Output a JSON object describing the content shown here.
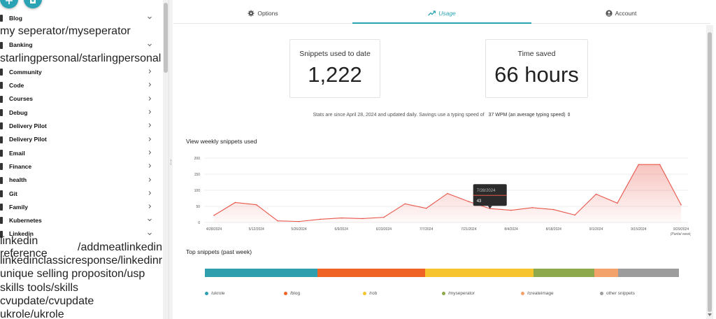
{
  "sidebar": {
    "items": [
      {
        "type": "folder",
        "label": "Blog",
        "expanded": true
      },
      {
        "type": "snippet",
        "label": "my seperator",
        "tag": "/myseperator"
      },
      {
        "type": "folder",
        "label": "Banking",
        "expanded": true
      },
      {
        "type": "snippet",
        "label": "starlingpersonal",
        "tag": "/starlingpersonal"
      },
      {
        "type": "folder",
        "label": "Community",
        "expanded": false
      },
      {
        "type": "folder",
        "label": "Code",
        "expanded": false
      },
      {
        "type": "folder",
        "label": "Courses",
        "expanded": false
      },
      {
        "type": "folder",
        "label": "Debug",
        "expanded": false
      },
      {
        "type": "folder",
        "label": "Delivery Pilot",
        "expanded": false
      },
      {
        "type": "folder",
        "label": "Delivery Pilot",
        "expanded": false
      },
      {
        "type": "folder",
        "label": "Email",
        "expanded": false
      },
      {
        "type": "folder",
        "label": "Finance",
        "expanded": false
      },
      {
        "type": "folder",
        "label": "health",
        "expanded": false
      },
      {
        "type": "folder",
        "label": "Git",
        "expanded": false
      },
      {
        "type": "folder",
        "label": "Family",
        "expanded": false
      },
      {
        "type": "folder",
        "label": "Kubernetes",
        "expanded": true
      },
      {
        "type": "folder",
        "label": "Linkedin",
        "expanded": true
      },
      {
        "type": "snippet",
        "label": "linkedin reference",
        "tag": "/addmeatlinkedin"
      },
      {
        "type": "snippet",
        "label": "linkedinclassicresponse",
        "tag": "/linkedinresponse"
      },
      {
        "type": "snippet",
        "label": "unique selling propositon",
        "tag": "/usp"
      },
      {
        "type": "snippet",
        "label": "skills tools",
        "tag": "/skills"
      },
      {
        "type": "snippet",
        "label": "cvupdate",
        "tag": "/cvupdate"
      },
      {
        "type": "snippet",
        "label": "ukrole",
        "tag": "/ukrole"
      }
    ]
  },
  "tabs": [
    {
      "label": "Options",
      "icon": "gear-icon",
      "active": false
    },
    {
      "label": "Usage",
      "icon": "trending-up-icon",
      "active": true
    },
    {
      "label": "Account",
      "icon": "account-circle-icon",
      "active": false
    }
  ],
  "cards": {
    "snippets_title": "Snippets used to date",
    "snippets_value": "1,222",
    "time_title": "Time saved",
    "time_value": "66 hours"
  },
  "stats": {
    "text": "Stats are since April 28, 2024 and updated daily. Savings use a typing speed of",
    "wpm": "37 WPM (an average typing speed)"
  },
  "weekly_title": "View weekly snippets used",
  "top_title": "Top snippets (past week)",
  "chart_data": [
    {
      "type": "area",
      "title": "View weekly snippets used",
      "x": [
        "4/28/2024",
        "5/5/2024",
        "5/12/2024",
        "5/19/2024",
        "5/26/2024",
        "6/2/2024",
        "6/9/2024",
        "6/16/2024",
        "6/23/2024",
        "6/30/2024",
        "7/7/2024",
        "7/14/2024",
        "7/21/2024",
        "7/28/2024",
        "8/4/2024",
        "8/11/2024",
        "8/18/2024",
        "8/25/2024",
        "9/1/2024",
        "9/8/2024",
        "9/15/2024",
        "9/22/2024",
        "9/29/2024"
      ],
      "y": [
        22,
        62,
        55,
        5,
        3,
        10,
        14,
        12,
        16,
        58,
        44,
        90,
        65,
        43,
        38,
        46,
        40,
        23,
        88,
        60,
        180,
        180,
        55
      ],
      "x_tick_labels": [
        "4/28/2024",
        "5/12/2024",
        "5/26/2024",
        "6/9/2024",
        "6/23/2024",
        "7/7/2024",
        "7/21/2024",
        "8/4/2024",
        "8/18/2024",
        "9/1/2024",
        "9/15/2024",
        "9/29/2024"
      ],
      "x_tick_note": "(Partial week)",
      "y_ticks": [
        0,
        50,
        100,
        150,
        200
      ],
      "ylim": [
        0,
        200
      ],
      "grid": true,
      "color": "#e8564a",
      "tooltip": {
        "date": "7/28/2024",
        "value": "43"
      }
    },
    {
      "type": "bar",
      "title": "Top snippets (past week)",
      "stacked": true,
      "series": [
        {
          "name": "/ukrole",
          "value": 24,
          "color": "#2f9fae"
        },
        {
          "name": "/blog",
          "value": 23,
          "color": "#ef6424"
        },
        {
          "name": "/rob",
          "value": 23,
          "color": "#f6c52e"
        },
        {
          "name": "/myseperator",
          "value": 13,
          "color": "#8ea84c"
        },
        {
          "name": "/createimage",
          "value": 5,
          "color": "#f4a26c"
        },
        {
          "name": "other snippets",
          "value": 13,
          "color": "#9c9c9c"
        }
      ]
    }
  ]
}
